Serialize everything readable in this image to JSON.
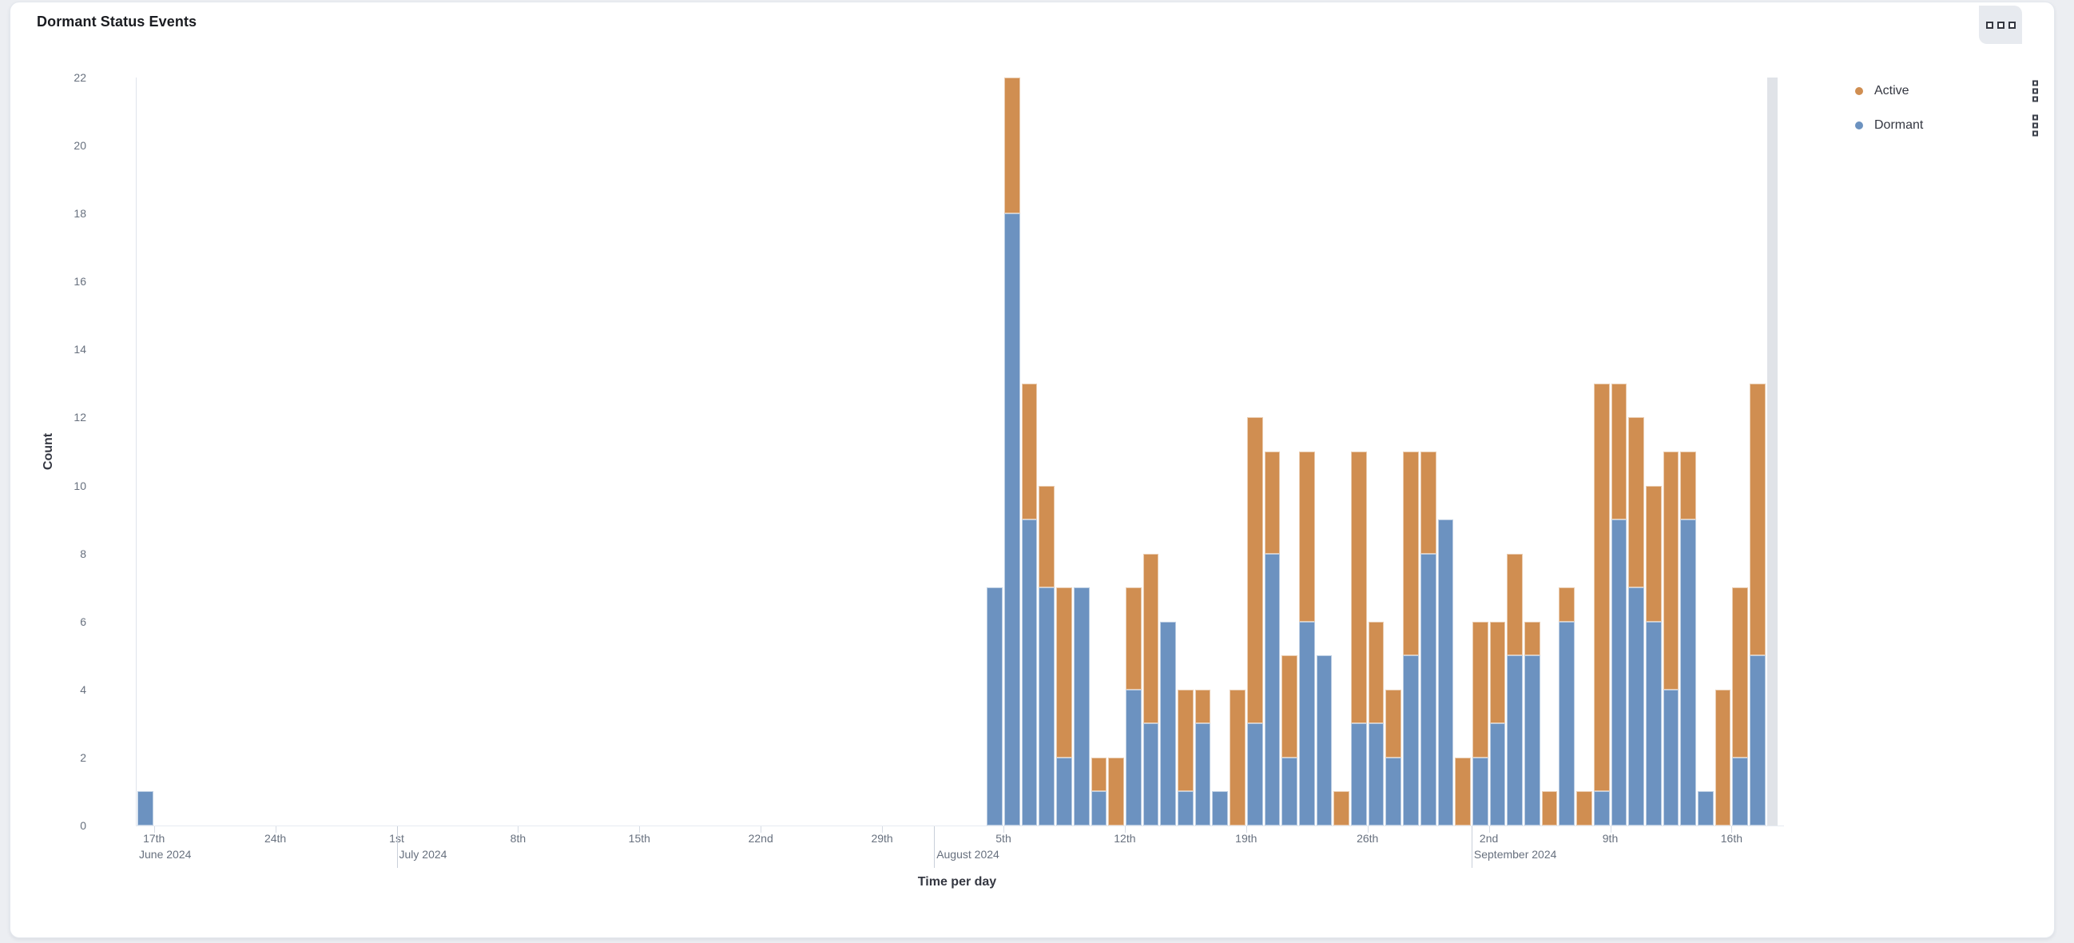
{
  "panel": {
    "title": "Dormant Status Events",
    "options_icon": "panel-options-ellipsis"
  },
  "legend": {
    "items": [
      {
        "label": "Active",
        "color": "#d08e51"
      },
      {
        "label": "Dormant",
        "color": "#6c92c0"
      }
    ],
    "action_icon": "legend-item-actions"
  },
  "chart_data": {
    "type": "bar",
    "stacked": true,
    "title": "Dormant Status Events",
    "xlabel": "Time per day",
    "ylabel": "Count",
    "ylim": [
      0,
      22
    ],
    "yticks": [
      0,
      2,
      4,
      6,
      8,
      10,
      12,
      14,
      16,
      18,
      20,
      22
    ],
    "grid": false,
    "legend_position": "right",
    "x_domain_start": "2024-06-16",
    "bucket_interval": "1 day",
    "series": [
      {
        "name": "Dormant",
        "color": "#6c92c0",
        "stack_order": 0
      },
      {
        "name": "Active",
        "color": "#d08e51",
        "stack_order": 1
      }
    ],
    "points": [
      {
        "date": "Jun 16",
        "idx": 0,
        "dormant": 1,
        "active": 0
      },
      {
        "date": "Aug 4",
        "idx": 49,
        "dormant": 7,
        "active": 0
      },
      {
        "date": "Aug 5",
        "idx": 50,
        "dormant": 18,
        "active": 4
      },
      {
        "date": "Aug 6",
        "idx": 51,
        "dormant": 9,
        "active": 4
      },
      {
        "date": "Aug 7",
        "idx": 52,
        "dormant": 7,
        "active": 3
      },
      {
        "date": "Aug 8",
        "idx": 53,
        "dormant": 2,
        "active": 5
      },
      {
        "date": "Aug 9",
        "idx": 54,
        "dormant": 7,
        "active": 0
      },
      {
        "date": "Aug 10",
        "idx": 55,
        "dormant": 1,
        "active": 1
      },
      {
        "date": "Aug 11",
        "idx": 56,
        "dormant": 0,
        "active": 2
      },
      {
        "date": "Aug 12",
        "idx": 57,
        "dormant": 4,
        "active": 3
      },
      {
        "date": "Aug 13",
        "idx": 58,
        "dormant": 3,
        "active": 5
      },
      {
        "date": "Aug 14",
        "idx": 59,
        "dormant": 6,
        "active": 0
      },
      {
        "date": "Aug 15",
        "idx": 60,
        "dormant": 1,
        "active": 3
      },
      {
        "date": "Aug 16",
        "idx": 61,
        "dormant": 3,
        "active": 1
      },
      {
        "date": "Aug 17",
        "idx": 62,
        "dormant": 1,
        "active": 0
      },
      {
        "date": "Aug 18",
        "idx": 63,
        "dormant": 0,
        "active": 4
      },
      {
        "date": "Aug 19",
        "idx": 64,
        "dormant": 3,
        "active": 9
      },
      {
        "date": "Aug 20",
        "idx": 65,
        "dormant": 8,
        "active": 3
      },
      {
        "date": "Aug 21",
        "idx": 66,
        "dormant": 2,
        "active": 3
      },
      {
        "date": "Aug 22",
        "idx": 67,
        "dormant": 6,
        "active": 5
      },
      {
        "date": "Aug 23",
        "idx": 68,
        "dormant": 5,
        "active": 0
      },
      {
        "date": "Aug 24",
        "idx": 69,
        "dormant": 0,
        "active": 1
      },
      {
        "date": "Aug 25",
        "idx": 70,
        "dormant": 3,
        "active": 8
      },
      {
        "date": "Aug 26",
        "idx": 71,
        "dormant": 3,
        "active": 3
      },
      {
        "date": "Aug 27",
        "idx": 72,
        "dormant": 2,
        "active": 2
      },
      {
        "date": "Aug 28",
        "idx": 73,
        "dormant": 5,
        "active": 6
      },
      {
        "date": "Aug 29",
        "idx": 74,
        "dormant": 8,
        "active": 3
      },
      {
        "date": "Aug 30",
        "idx": 75,
        "dormant": 9,
        "active": 0
      },
      {
        "date": "Aug 31",
        "idx": 76,
        "dormant": 0,
        "active": 2
      },
      {
        "date": "Sep 1",
        "idx": 77,
        "dormant": 2,
        "active": 4
      },
      {
        "date": "Sep 2",
        "idx": 78,
        "dormant": 3,
        "active": 3
      },
      {
        "date": "Sep 3",
        "idx": 79,
        "dormant": 5,
        "active": 3
      },
      {
        "date": "Sep 4",
        "idx": 80,
        "dormant": 5,
        "active": 1
      },
      {
        "date": "Sep 5",
        "idx": 81,
        "dormant": 0,
        "active": 1
      },
      {
        "date": "Sep 6",
        "idx": 82,
        "dormant": 6,
        "active": 1
      },
      {
        "date": "Sep 7",
        "idx": 83,
        "dormant": 0,
        "active": 1
      },
      {
        "date": "Sep 8",
        "idx": 84,
        "dormant": 1,
        "active": 12
      },
      {
        "date": "Sep 9",
        "idx": 85,
        "dormant": 9,
        "active": 4
      },
      {
        "date": "Sep 10",
        "idx": 86,
        "dormant": 7,
        "active": 5
      },
      {
        "date": "Sep 11",
        "idx": 87,
        "dormant": 6,
        "active": 4
      },
      {
        "date": "Sep 12",
        "idx": 88,
        "dormant": 4,
        "active": 7
      },
      {
        "date": "Sep 13",
        "idx": 89,
        "dormant": 9,
        "active": 2
      },
      {
        "date": "Sep 14",
        "idx": 90,
        "dormant": 1,
        "active": 0
      },
      {
        "date": "Sep 15",
        "idx": 91,
        "dormant": 0,
        "active": 4
      },
      {
        "date": "Sep 16",
        "idx": 92,
        "dormant": 2,
        "active": 5
      },
      {
        "date": "Sep 17",
        "idx": 93,
        "dormant": 5,
        "active": 8
      }
    ],
    "x_ticks": [
      {
        "label": "17th",
        "idx": 1
      },
      {
        "label": "24th",
        "idx": 8
      },
      {
        "label": "1st",
        "idx": 15
      },
      {
        "label": "8th",
        "idx": 22
      },
      {
        "label": "15th",
        "idx": 29
      },
      {
        "label": "22nd",
        "idx": 36
      },
      {
        "label": "29th",
        "idx": 43
      },
      {
        "label": "5th",
        "idx": 50
      },
      {
        "label": "12th",
        "idx": 57
      },
      {
        "label": "19th",
        "idx": 64
      },
      {
        "label": "26th",
        "idx": 71
      },
      {
        "label": "2nd",
        "idx": 78
      },
      {
        "label": "9th",
        "idx": 85
      },
      {
        "label": "16th",
        "idx": 92
      }
    ],
    "month_labels": [
      {
        "label": "June 2024",
        "idx": 0,
        "separator": false
      },
      {
        "label": "July 2024",
        "idx": 15,
        "separator": true
      },
      {
        "label": "August 2024",
        "idx": 46,
        "separator": true
      },
      {
        "label": "September 2024",
        "idx": 77,
        "separator": true
      }
    ],
    "partial_bucket_marker": {
      "idx": 94,
      "color": "#e0e3e8"
    }
  }
}
